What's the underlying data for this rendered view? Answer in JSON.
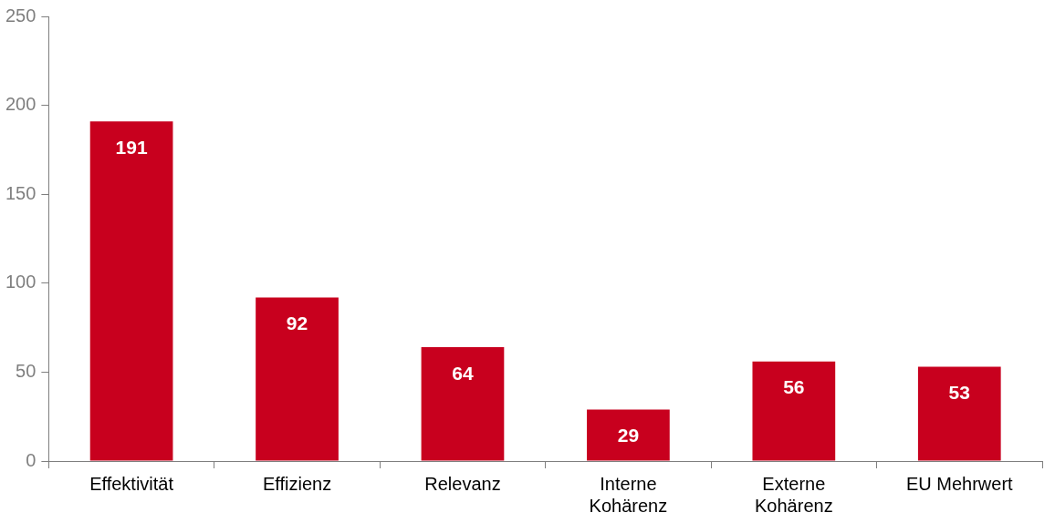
{
  "chart_data": {
    "type": "bar",
    "categories": [
      "Effektivität",
      "Effizienz",
      "Relevanz",
      "Interne Kohärenz",
      "Externe Kohärenz",
      "EU Mehrwert"
    ],
    "values": [
      191,
      92,
      64,
      29,
      56,
      53
    ],
    "color": "#c8001e",
    "ylim": [
      0,
      250
    ],
    "yticks": [
      0,
      50,
      100,
      150,
      200,
      250
    ],
    "grid": false,
    "legend": false,
    "data_labels": true
  }
}
